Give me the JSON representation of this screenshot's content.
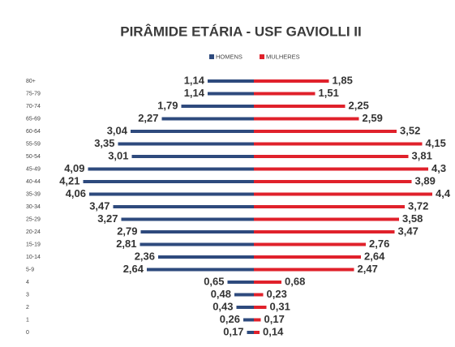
{
  "chart_data": {
    "type": "pyramid",
    "title": "PIRÂMIDE ETÁRIA - USF GAVIOLLI II",
    "categories": [
      "80+",
      "75-79",
      "70-74",
      "65-69",
      "60-64",
      "55-59",
      "50-54",
      "45-49",
      "40-44",
      "35-39",
      "30-34",
      "25-29",
      "20-24",
      "15-19",
      "10-14",
      "5-9",
      "4",
      "3",
      "2",
      "1",
      "0"
    ],
    "series": [
      {
        "name": "HOMENS",
        "color": "#2e4a7d",
        "values": [
          1.14,
          1.14,
          1.79,
          2.27,
          3.04,
          3.35,
          3.01,
          4.09,
          4.21,
          4.06,
          3.47,
          3.27,
          2.79,
          2.81,
          2.36,
          2.64,
          0.65,
          0.48,
          0.43,
          0.26,
          0.17
        ],
        "value_labels": [
          "1,14",
          "1,14",
          "1,79",
          "2,27",
          "3,04",
          "3,35",
          "3,01",
          "4,09",
          "4,21",
          "4,06",
          "3,47",
          "3,27",
          "2,79",
          "2,81",
          "2,36",
          "2,64",
          "0,65",
          "0,48",
          "0,43",
          "0,26",
          "0,17"
        ]
      },
      {
        "name": "MULHERES",
        "color": "#e0212b",
        "values": [
          1.85,
          1.51,
          2.25,
          2.59,
          3.52,
          4.15,
          3.81,
          4.3,
          3.89,
          4.4,
          3.72,
          3.58,
          3.47,
          2.76,
          2.64,
          2.47,
          0.68,
          0.23,
          0.31,
          0.17,
          0.14
        ],
        "value_labels": [
          "1,85",
          "1,51",
          "2,25",
          "2,59",
          "3,52",
          "4,15",
          "3,81",
          "4,3",
          "3,89",
          "4,4",
          "3,72",
          "3,58",
          "3,47",
          "2,76",
          "2,64",
          "2,47",
          "0,68",
          "0,23",
          "0,31",
          "0,17",
          "0,14"
        ]
      }
    ],
    "legend": "top"
  }
}
